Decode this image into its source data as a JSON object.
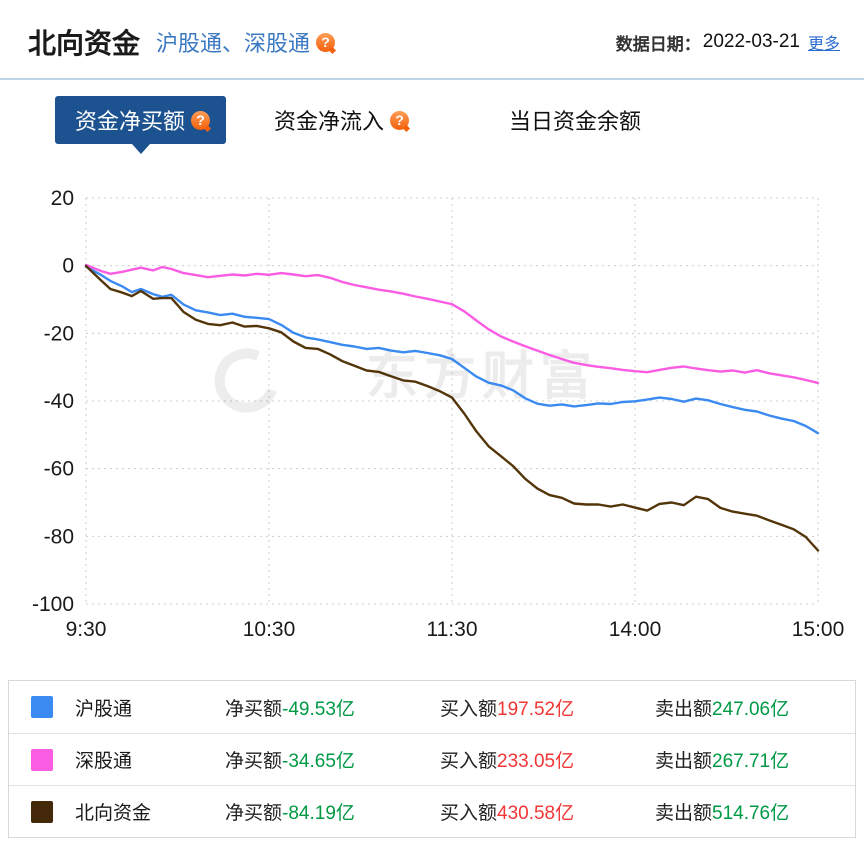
{
  "header": {
    "title": "北向资金",
    "subtitle": "沪股通、深股通",
    "date_label": "数据日期：",
    "date_value": "2022-03-21",
    "more_label": "更多"
  },
  "icons": {
    "help": "?"
  },
  "tabs": [
    {
      "label": "资金净买额",
      "active": true
    },
    {
      "label": "资金净流入",
      "active": false
    },
    {
      "label": "当日资金余额",
      "active": false
    }
  ],
  "watermark": "东方财富",
  "colors": {
    "tab_active_bg": "#1d5291",
    "link_blue": "#2b6cd0",
    "divider_blue": "#bdd3e8",
    "value_green": "#009944",
    "value_red": "#f23636"
  },
  "chart_data": {
    "type": "line",
    "title": "",
    "xlabel": "",
    "ylabel": "",
    "x_axis_note": "trading minutes from 9:30; lunch break 11:30-13:00 compressed",
    "xlim": [
      0,
      240
    ],
    "ylim": [
      -100,
      20
    ],
    "x_ticks": [
      {
        "t": 0,
        "label": "9:30"
      },
      {
        "t": 60,
        "label": "10:30"
      },
      {
        "t": 120,
        "label": "11:30"
      },
      {
        "t": 180,
        "label": "14:00"
      },
      {
        "t": 240,
        "label": "15:00"
      }
    ],
    "y_ticks": [
      20,
      0,
      -20,
      -40,
      -60,
      -80,
      -100
    ],
    "grid": "dotted",
    "legend_position": "bottom-table",
    "unit": "亿",
    "series": [
      {
        "name": "沪股通",
        "color": "#3a8af2",
        "points": [
          [
            0,
            -0.3
          ],
          [
            5,
            -2.8
          ],
          [
            8,
            -4.5
          ],
          [
            12,
            -6.2
          ],
          [
            15,
            -7.8
          ],
          [
            18,
            -6.9
          ],
          [
            22,
            -8.4
          ],
          [
            25,
            -9.2
          ],
          [
            28,
            -8.6
          ],
          [
            32,
            -11.5
          ],
          [
            36,
            -13.2
          ],
          [
            40,
            -13.8
          ],
          [
            44,
            -14.6
          ],
          [
            48,
            -14.2
          ],
          [
            52,
            -15.1
          ],
          [
            56,
            -15.4
          ],
          [
            60,
            -15.8
          ],
          [
            64,
            -17.5
          ],
          [
            68,
            -19.8
          ],
          [
            72,
            -21.2
          ],
          [
            76,
            -21.8
          ],
          [
            80,
            -22.6
          ],
          [
            84,
            -23.4
          ],
          [
            88,
            -23.9
          ],
          [
            92,
            -24.6
          ],
          [
            96,
            -24.3
          ],
          [
            100,
            -25.1
          ],
          [
            104,
            -25.6
          ],
          [
            108,
            -25.2
          ],
          [
            112,
            -25.8
          ],
          [
            116,
            -26.5
          ],
          [
            120,
            -27.6
          ],
          [
            124,
            -30.2
          ],
          [
            128,
            -32.8
          ],
          [
            132,
            -34.6
          ],
          [
            136,
            -35.4
          ],
          [
            140,
            -36.8
          ],
          [
            144,
            -39.2
          ],
          [
            148,
            -40.8
          ],
          [
            152,
            -41.4
          ],
          [
            156,
            -41.0
          ],
          [
            160,
            -41.6
          ],
          [
            164,
            -41.2
          ],
          [
            168,
            -40.7
          ],
          [
            172,
            -40.9
          ],
          [
            176,
            -40.3
          ],
          [
            180,
            -40.1
          ],
          [
            184,
            -39.6
          ],
          [
            188,
            -39.0
          ],
          [
            192,
            -39.4
          ],
          [
            196,
            -40.2
          ],
          [
            200,
            -39.3
          ],
          [
            204,
            -39.8
          ],
          [
            208,
            -40.9
          ],
          [
            212,
            -41.8
          ],
          [
            216,
            -42.6
          ],
          [
            220,
            -43.1
          ],
          [
            224,
            -44.3
          ],
          [
            228,
            -45.2
          ],
          [
            232,
            -45.9
          ],
          [
            236,
            -47.4
          ],
          [
            240,
            -49.53
          ]
        ]
      },
      {
        "name": "深股通",
        "color": "#fa5ce4",
        "points": [
          [
            0,
            0.2
          ],
          [
            5,
            -1.6
          ],
          [
            8,
            -2.4
          ],
          [
            12,
            -1.8
          ],
          [
            15,
            -1.2
          ],
          [
            18,
            -0.6
          ],
          [
            22,
            -1.4
          ],
          [
            25,
            -0.4
          ],
          [
            28,
            -1.0
          ],
          [
            32,
            -2.2
          ],
          [
            36,
            -2.8
          ],
          [
            40,
            -3.4
          ],
          [
            44,
            -3.0
          ],
          [
            48,
            -2.6
          ],
          [
            52,
            -2.9
          ],
          [
            56,
            -2.4
          ],
          [
            60,
            -2.7
          ],
          [
            64,
            -2.2
          ],
          [
            68,
            -2.6
          ],
          [
            72,
            -3.1
          ],
          [
            76,
            -2.8
          ],
          [
            80,
            -3.6
          ],
          [
            84,
            -4.8
          ],
          [
            88,
            -5.7
          ],
          [
            92,
            -6.4
          ],
          [
            96,
            -7.1
          ],
          [
            100,
            -7.6
          ],
          [
            104,
            -8.3
          ],
          [
            108,
            -9.1
          ],
          [
            112,
            -9.8
          ],
          [
            116,
            -10.6
          ],
          [
            120,
            -11.4
          ],
          [
            124,
            -13.5
          ],
          [
            128,
            -16.2
          ],
          [
            132,
            -18.8
          ],
          [
            136,
            -20.9
          ],
          [
            140,
            -22.4
          ],
          [
            144,
            -23.8
          ],
          [
            148,
            -25.1
          ],
          [
            152,
            -26.4
          ],
          [
            156,
            -27.6
          ],
          [
            160,
            -28.7
          ],
          [
            164,
            -29.4
          ],
          [
            168,
            -29.9
          ],
          [
            172,
            -30.3
          ],
          [
            176,
            -30.8
          ],
          [
            180,
            -31.2
          ],
          [
            184,
            -31.5
          ],
          [
            188,
            -30.8
          ],
          [
            192,
            -30.2
          ],
          [
            196,
            -29.8
          ],
          [
            200,
            -30.4
          ],
          [
            204,
            -30.9
          ],
          [
            208,
            -31.3
          ],
          [
            212,
            -31.0
          ],
          [
            216,
            -31.6
          ],
          [
            220,
            -30.9
          ],
          [
            224,
            -31.8
          ],
          [
            228,
            -32.4
          ],
          [
            232,
            -33.0
          ],
          [
            236,
            -33.8
          ],
          [
            240,
            -34.65
          ]
        ]
      },
      {
        "name": "北向资金",
        "color": "#53350a",
        "points": [
          [
            0,
            -0.1
          ],
          [
            5,
            -4.4
          ],
          [
            8,
            -6.9
          ],
          [
            12,
            -8.0
          ],
          [
            15,
            -9.0
          ],
          [
            18,
            -7.5
          ],
          [
            22,
            -9.8
          ],
          [
            25,
            -9.6
          ],
          [
            28,
            -9.6
          ],
          [
            32,
            -13.7
          ],
          [
            36,
            -16.0
          ],
          [
            40,
            -17.2
          ],
          [
            44,
            -17.6
          ],
          [
            48,
            -16.8
          ],
          [
            52,
            -18.0
          ],
          [
            56,
            -17.8
          ],
          [
            60,
            -18.5
          ],
          [
            64,
            -19.7
          ],
          [
            68,
            -22.4
          ],
          [
            72,
            -24.3
          ],
          [
            76,
            -24.6
          ],
          [
            80,
            -26.2
          ],
          [
            84,
            -28.2
          ],
          [
            88,
            -29.6
          ],
          [
            92,
            -31.0
          ],
          [
            96,
            -31.4
          ],
          [
            100,
            -32.7
          ],
          [
            104,
            -33.9
          ],
          [
            108,
            -34.3
          ],
          [
            112,
            -35.6
          ],
          [
            116,
            -37.1
          ],
          [
            120,
            -39.0
          ],
          [
            124,
            -43.7
          ],
          [
            128,
            -49.0
          ],
          [
            132,
            -53.4
          ],
          [
            136,
            -56.3
          ],
          [
            140,
            -59.2
          ],
          [
            144,
            -63.0
          ],
          [
            148,
            -65.9
          ],
          [
            152,
            -67.8
          ],
          [
            156,
            -68.6
          ],
          [
            160,
            -70.3
          ],
          [
            164,
            -70.6
          ],
          [
            168,
            -70.6
          ],
          [
            172,
            -71.2
          ],
          [
            176,
            -70.6
          ],
          [
            180,
            -71.5
          ],
          [
            184,
            -72.4
          ],
          [
            188,
            -70.4
          ],
          [
            192,
            -70.0
          ],
          [
            196,
            -70.8
          ],
          [
            200,
            -68.3
          ],
          [
            204,
            -69.0
          ],
          [
            208,
            -71.6
          ],
          [
            212,
            -72.7
          ],
          [
            216,
            -73.3
          ],
          [
            220,
            -73.9
          ],
          [
            224,
            -75.3
          ],
          [
            228,
            -76.6
          ],
          [
            232,
            -77.9
          ],
          [
            236,
            -80.2
          ],
          [
            240,
            -84.19
          ]
        ]
      }
    ]
  },
  "legend": {
    "value_colors": {
      "net": "#009944",
      "buy": "#f23636",
      "sell": "#009944"
    },
    "rows": [
      {
        "name": "沪股通",
        "color": "#3a8af2",
        "net_label": "净买额",
        "net_value": "-49.53亿",
        "buy_label": "买入额",
        "buy_value": "197.52亿",
        "sell_label": "卖出额",
        "sell_value": "247.06亿"
      },
      {
        "name": "深股通",
        "color": "#fa5ce4",
        "net_label": "净买额",
        "net_value": "-34.65亿",
        "buy_label": "买入额",
        "buy_value": "233.05亿",
        "sell_label": "卖出额",
        "sell_value": "267.71亿"
      },
      {
        "name": "北向资金",
        "color": "#43280a",
        "net_label": "净买额",
        "net_value": "-84.19亿",
        "buy_label": "买入额",
        "buy_value": "430.58亿",
        "sell_label": "卖出额",
        "sell_value": "514.76亿"
      }
    ]
  }
}
